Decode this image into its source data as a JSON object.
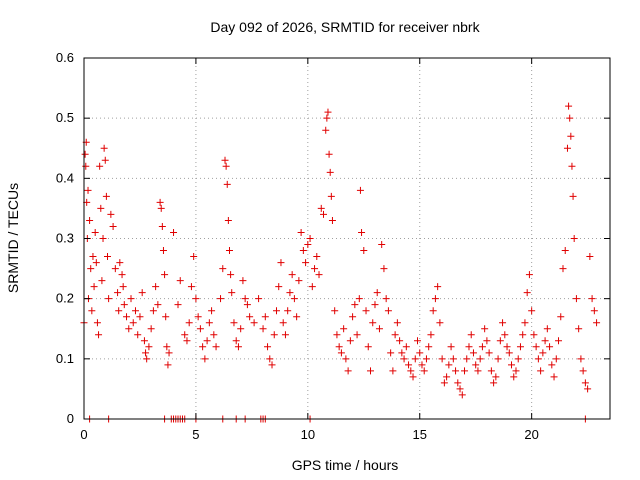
{
  "colors": {
    "series": "#e00000",
    "frame": "#000000",
    "grid": "#a0a0a0"
  },
  "chart_data": {
    "type": "scatter",
    "title": "Day 092 of 2026, SRMTID for receiver nbrk",
    "xlabel": "GPS time / hours",
    "ylabel": "SRMTID / TECUs",
    "xlim": [
      0,
      23.5
    ],
    "ylim": [
      0,
      0.6
    ],
    "xticks": [
      0,
      5,
      10,
      15,
      20
    ],
    "xtick_labels": [
      "0",
      "5",
      "10",
      "15",
      "20"
    ],
    "yticks": [
      0,
      0.1,
      0.2,
      0.3,
      0.4,
      0.5,
      0.6
    ],
    "ytick_labels": [
      "0",
      "0.1",
      "0.2",
      "0.3",
      "0.4",
      "0.5",
      "0.6"
    ],
    "grid": true,
    "marker": "+",
    "series": [
      {
        "name": "SRMTID",
        "points": [
          [
            0.0,
            0.16
          ],
          [
            0.05,
            0.44
          ],
          [
            0.08,
            0.42
          ],
          [
            0.1,
            0.46
          ],
          [
            0.12,
            0.36
          ],
          [
            0.15,
            0.3
          ],
          [
            0.18,
            0.38
          ],
          [
            0.2,
            0.2
          ],
          [
            0.25,
            0.33
          ],
          [
            0.3,
            0.25
          ],
          [
            0.35,
            0.18
          ],
          [
            0.4,
            0.27
          ],
          [
            0.45,
            0.22
          ],
          [
            0.5,
            0.31
          ],
          [
            0.55,
            0.26
          ],
          [
            0.6,
            0.16
          ],
          [
            0.65,
            0.14
          ],
          [
            0.7,
            0.42
          ],
          [
            0.75,
            0.35
          ],
          [
            0.8,
            0.23
          ],
          [
            0.85,
            0.3
          ],
          [
            0.9,
            0.45
          ],
          [
            0.95,
            0.43
          ],
          [
            1.0,
            0.37
          ],
          [
            1.05,
            0.27
          ],
          [
            1.1,
            0.2
          ],
          [
            1.2,
            0.34
          ],
          [
            1.3,
            0.32
          ],
          [
            1.4,
            0.25
          ],
          [
            1.5,
            0.21
          ],
          [
            1.55,
            0.18
          ],
          [
            1.6,
            0.26
          ],
          [
            1.7,
            0.24
          ],
          [
            1.75,
            0.22
          ],
          [
            1.8,
            0.19
          ],
          [
            1.9,
            0.17
          ],
          [
            2.0,
            0.15
          ],
          [
            2.1,
            0.2
          ],
          [
            2.2,
            0.16
          ],
          [
            2.3,
            0.18
          ],
          [
            2.4,
            0.14
          ],
          [
            2.5,
            0.17
          ],
          [
            2.6,
            0.21
          ],
          [
            2.7,
            0.13
          ],
          [
            2.75,
            0.11
          ],
          [
            2.8,
            0.1
          ],
          [
            2.9,
            0.12
          ],
          [
            3.0,
            0.15
          ],
          [
            3.1,
            0.18
          ],
          [
            3.2,
            0.22
          ],
          [
            3.3,
            0.19
          ],
          [
            3.4,
            0.36
          ],
          [
            3.45,
            0.35
          ],
          [
            3.5,
            0.32
          ],
          [
            3.55,
            0.28
          ],
          [
            3.6,
            0.24
          ],
          [
            3.65,
            0.17
          ],
          [
            3.7,
            0.12
          ],
          [
            3.75,
            0.09
          ],
          [
            3.8,
            0.11
          ],
          [
            4.0,
            0.31
          ],
          [
            4.2,
            0.19
          ],
          [
            4.3,
            0.23
          ],
          [
            4.5,
            0.14
          ],
          [
            4.6,
            0.13
          ],
          [
            4.7,
            0.16
          ],
          [
            4.8,
            0.22
          ],
          [
            4.9,
            0.27
          ],
          [
            5.0,
            0.2
          ],
          [
            5.1,
            0.17
          ],
          [
            5.2,
            0.15
          ],
          [
            5.3,
            0.12
          ],
          [
            5.4,
            0.1
          ],
          [
            5.5,
            0.13
          ],
          [
            5.6,
            0.16
          ],
          [
            5.7,
            0.18
          ],
          [
            5.8,
            0.14
          ],
          [
            5.9,
            0.12
          ],
          [
            6.1,
            0.2
          ],
          [
            6.2,
            0.25
          ],
          [
            6.3,
            0.43
          ],
          [
            6.35,
            0.42
          ],
          [
            6.4,
            0.39
          ],
          [
            6.45,
            0.33
          ],
          [
            6.5,
            0.28
          ],
          [
            6.55,
            0.24
          ],
          [
            6.6,
            0.21
          ],
          [
            6.7,
            0.16
          ],
          [
            6.8,
            0.13
          ],
          [
            6.9,
            0.12
          ],
          [
            7.0,
            0.15
          ],
          [
            7.1,
            0.23
          ],
          [
            7.2,
            0.2
          ],
          [
            7.3,
            0.19
          ],
          [
            7.4,
            0.17
          ],
          [
            7.6,
            0.16
          ],
          [
            7.8,
            0.2
          ],
          [
            8.0,
            0.15
          ],
          [
            8.1,
            0.17
          ],
          [
            8.2,
            0.12
          ],
          [
            8.3,
            0.1
          ],
          [
            8.4,
            0.09
          ],
          [
            8.5,
            0.14
          ],
          [
            8.6,
            0.18
          ],
          [
            8.7,
            0.22
          ],
          [
            8.8,
            0.26
          ],
          [
            8.9,
            0.16
          ],
          [
            9.0,
            0.14
          ],
          [
            9.1,
            0.18
          ],
          [
            9.2,
            0.21
          ],
          [
            9.3,
            0.24
          ],
          [
            9.4,
            0.2
          ],
          [
            9.5,
            0.17
          ],
          [
            9.6,
            0.23
          ],
          [
            9.7,
            0.31
          ],
          [
            9.8,
            0.28
          ],
          [
            9.9,
            0.26
          ],
          [
            10.0,
            0.29
          ],
          [
            10.1,
            0.3
          ],
          [
            10.2,
            0.22
          ],
          [
            10.3,
            0.25
          ],
          [
            10.4,
            0.27
          ],
          [
            10.5,
            0.24
          ],
          [
            10.6,
            0.35
          ],
          [
            10.7,
            0.34
          ],
          [
            10.8,
            0.48
          ],
          [
            10.85,
            0.5
          ],
          [
            10.9,
            0.51
          ],
          [
            10.95,
            0.44
          ],
          [
            11.0,
            0.41
          ],
          [
            11.05,
            0.37
          ],
          [
            11.1,
            0.33
          ],
          [
            11.2,
            0.18
          ],
          [
            11.3,
            0.14
          ],
          [
            11.4,
            0.12
          ],
          [
            11.5,
            0.11
          ],
          [
            11.6,
            0.15
          ],
          [
            11.7,
            0.1
          ],
          [
            11.8,
            0.08
          ],
          [
            11.9,
            0.13
          ],
          [
            12.0,
            0.17
          ],
          [
            12.1,
            0.19
          ],
          [
            12.2,
            0.14
          ],
          [
            12.3,
            0.2
          ],
          [
            12.35,
            0.38
          ],
          [
            12.4,
            0.31
          ],
          [
            12.5,
            0.28
          ],
          [
            12.6,
            0.18
          ],
          [
            12.7,
            0.12
          ],
          [
            12.8,
            0.08
          ],
          [
            12.9,
            0.16
          ],
          [
            13.0,
            0.19
          ],
          [
            13.1,
            0.21
          ],
          [
            13.2,
            0.15
          ],
          [
            13.3,
            0.29
          ],
          [
            13.4,
            0.25
          ],
          [
            13.5,
            0.2
          ],
          [
            13.6,
            0.18
          ],
          [
            13.7,
            0.11
          ],
          [
            13.8,
            0.08
          ],
          [
            13.9,
            0.14
          ],
          [
            14.0,
            0.16
          ],
          [
            14.1,
            0.13
          ],
          [
            14.2,
            0.11
          ],
          [
            14.3,
            0.1
          ],
          [
            14.4,
            0.12
          ],
          [
            14.5,
            0.09
          ],
          [
            14.6,
            0.08
          ],
          [
            14.7,
            0.07
          ],
          [
            14.8,
            0.1
          ],
          [
            14.9,
            0.13
          ],
          [
            15.0,
            0.11
          ],
          [
            15.1,
            0.09
          ],
          [
            15.2,
            0.08
          ],
          [
            15.3,
            0.1
          ],
          [
            15.4,
            0.12
          ],
          [
            15.5,
            0.14
          ],
          [
            15.6,
            0.18
          ],
          [
            15.7,
            0.2
          ],
          [
            15.8,
            0.22
          ],
          [
            15.9,
            0.16
          ],
          [
            16.0,
            0.1
          ],
          [
            16.1,
            0.06
          ],
          [
            16.2,
            0.07
          ],
          [
            16.3,
            0.09
          ],
          [
            16.4,
            0.12
          ],
          [
            16.5,
            0.1
          ],
          [
            16.6,
            0.08
          ],
          [
            16.7,
            0.06
          ],
          [
            16.8,
            0.05
          ],
          [
            16.9,
            0.04
          ],
          [
            17.0,
            0.08
          ],
          [
            17.1,
            0.1
          ],
          [
            17.2,
            0.12
          ],
          [
            17.3,
            0.14
          ],
          [
            17.4,
            0.11
          ],
          [
            17.5,
            0.09
          ],
          [
            17.6,
            0.08
          ],
          [
            17.7,
            0.1
          ],
          [
            17.8,
            0.12
          ],
          [
            17.9,
            0.15
          ],
          [
            18.0,
            0.13
          ],
          [
            18.1,
            0.11
          ],
          [
            18.2,
            0.08
          ],
          [
            18.3,
            0.06
          ],
          [
            18.4,
            0.07
          ],
          [
            18.5,
            0.1
          ],
          [
            18.6,
            0.13
          ],
          [
            18.7,
            0.16
          ],
          [
            18.8,
            0.14
          ],
          [
            18.9,
            0.12
          ],
          [
            19.0,
            0.11
          ],
          [
            19.1,
            0.09
          ],
          [
            19.2,
            0.07
          ],
          [
            19.3,
            0.08
          ],
          [
            19.4,
            0.1
          ],
          [
            19.5,
            0.12
          ],
          [
            19.6,
            0.14
          ],
          [
            19.7,
            0.16
          ],
          [
            19.8,
            0.21
          ],
          [
            19.9,
            0.24
          ],
          [
            20.0,
            0.18
          ],
          [
            20.1,
            0.14
          ],
          [
            20.2,
            0.12
          ],
          [
            20.3,
            0.1
          ],
          [
            20.4,
            0.08
          ],
          [
            20.5,
            0.11
          ],
          [
            20.6,
            0.13
          ],
          [
            20.7,
            0.15
          ],
          [
            20.8,
            0.12
          ],
          [
            20.9,
            0.09
          ],
          [
            21.0,
            0.07
          ],
          [
            21.1,
            0.1
          ],
          [
            21.2,
            0.13
          ],
          [
            21.3,
            0.17
          ],
          [
            21.4,
            0.25
          ],
          [
            21.5,
            0.28
          ],
          [
            21.6,
            0.45
          ],
          [
            21.65,
            0.52
          ],
          [
            21.7,
            0.5
          ],
          [
            21.75,
            0.47
          ],
          [
            21.8,
            0.42
          ],
          [
            21.85,
            0.37
          ],
          [
            21.9,
            0.3
          ],
          [
            22.0,
            0.2
          ],
          [
            22.1,
            0.15
          ],
          [
            22.2,
            0.1
          ],
          [
            22.3,
            0.08
          ],
          [
            22.4,
            0.06
          ],
          [
            22.5,
            0.05
          ],
          [
            22.6,
            0.27
          ],
          [
            22.7,
            0.2
          ],
          [
            22.8,
            0.18
          ],
          [
            22.9,
            0.16
          ],
          [
            0.25,
            0.0
          ],
          [
            1.1,
            0.0
          ],
          [
            3.6,
            0.0
          ],
          [
            3.9,
            0.0
          ],
          [
            4.0,
            0.0
          ],
          [
            4.1,
            0.0
          ],
          [
            4.2,
            0.0
          ],
          [
            4.3,
            0.0
          ],
          [
            4.4,
            0.0
          ],
          [
            4.5,
            0.0
          ],
          [
            5.0,
            0.0
          ],
          [
            6.2,
            0.0
          ],
          [
            6.8,
            0.0
          ],
          [
            7.2,
            0.0
          ],
          [
            7.9,
            0.0
          ],
          [
            8.0,
            0.0
          ],
          [
            8.1,
            0.0
          ],
          [
            10.1,
            0.0
          ],
          [
            22.4,
            0.0
          ]
        ]
      }
    ]
  }
}
